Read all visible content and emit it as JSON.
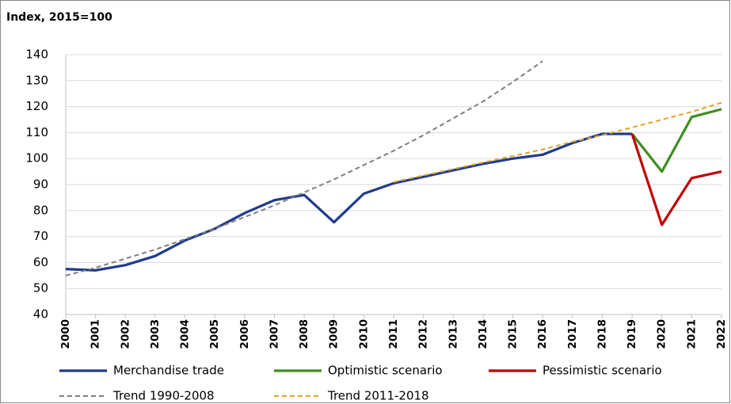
{
  "chart_data": {
    "type": "line",
    "y_label": "Index, 2015=100",
    "categories": [
      "2000",
      "2001",
      "2002",
      "2003",
      "2004",
      "2005",
      "2006",
      "2007",
      "2008",
      "2009",
      "2010",
      "2011",
      "2012",
      "2013",
      "2014",
      "2015",
      "2016",
      "2017",
      "2018",
      "2019",
      "2020",
      "2021",
      "2022"
    ],
    "series": [
      {
        "name": "Merchandise trade",
        "color": "#1f3b8c",
        "dashed": false,
        "values": [
          57.5,
          57,
          59,
          62.5,
          68.5,
          73,
          79,
          84,
          86,
          75.5,
          86.5,
          90.5,
          93,
          95.5,
          98,
          100,
          101.5,
          106,
          109.5,
          109.5,
          null,
          null,
          null
        ]
      },
      {
        "name": "Optimistic scenario",
        "color": "#3e8e1e",
        "dashed": false,
        "values": [
          null,
          null,
          null,
          null,
          null,
          null,
          null,
          null,
          null,
          null,
          null,
          null,
          null,
          null,
          null,
          null,
          null,
          null,
          null,
          109.5,
          95,
          116,
          119
        ]
      },
      {
        "name": "Pessimistic scenario",
        "color": "#c00000",
        "dashed": false,
        "values": [
          null,
          null,
          null,
          null,
          null,
          null,
          null,
          null,
          null,
          null,
          null,
          null,
          null,
          null,
          null,
          null,
          null,
          null,
          null,
          109.5,
          74.5,
          92.5,
          95
        ]
      },
      {
        "name": "Trend 1990-2008",
        "color": "#7f7f7f",
        "dashed": true,
        "values": [
          55,
          58,
          61.5,
          65,
          69,
          73,
          77.5,
          82,
          87,
          92,
          97.5,
          103,
          109,
          115.5,
          122,
          129.5,
          137.5,
          null,
          null,
          null,
          null,
          null,
          null
        ]
      },
      {
        "name": "Trend 2011-2018",
        "color": "#e0a526",
        "dashed": true,
        "values": [
          null,
          null,
          null,
          null,
          null,
          null,
          null,
          null,
          null,
          null,
          null,
          91,
          93.5,
          96,
          98.5,
          101,
          103.5,
          106.5,
          109,
          112,
          115,
          118,
          121.5
        ]
      }
    ],
    "ylim": [
      40,
      140
    ],
    "yticks": [
      40,
      50,
      60,
      70,
      80,
      90,
      100,
      110,
      120,
      130,
      140
    ],
    "grid": true
  }
}
